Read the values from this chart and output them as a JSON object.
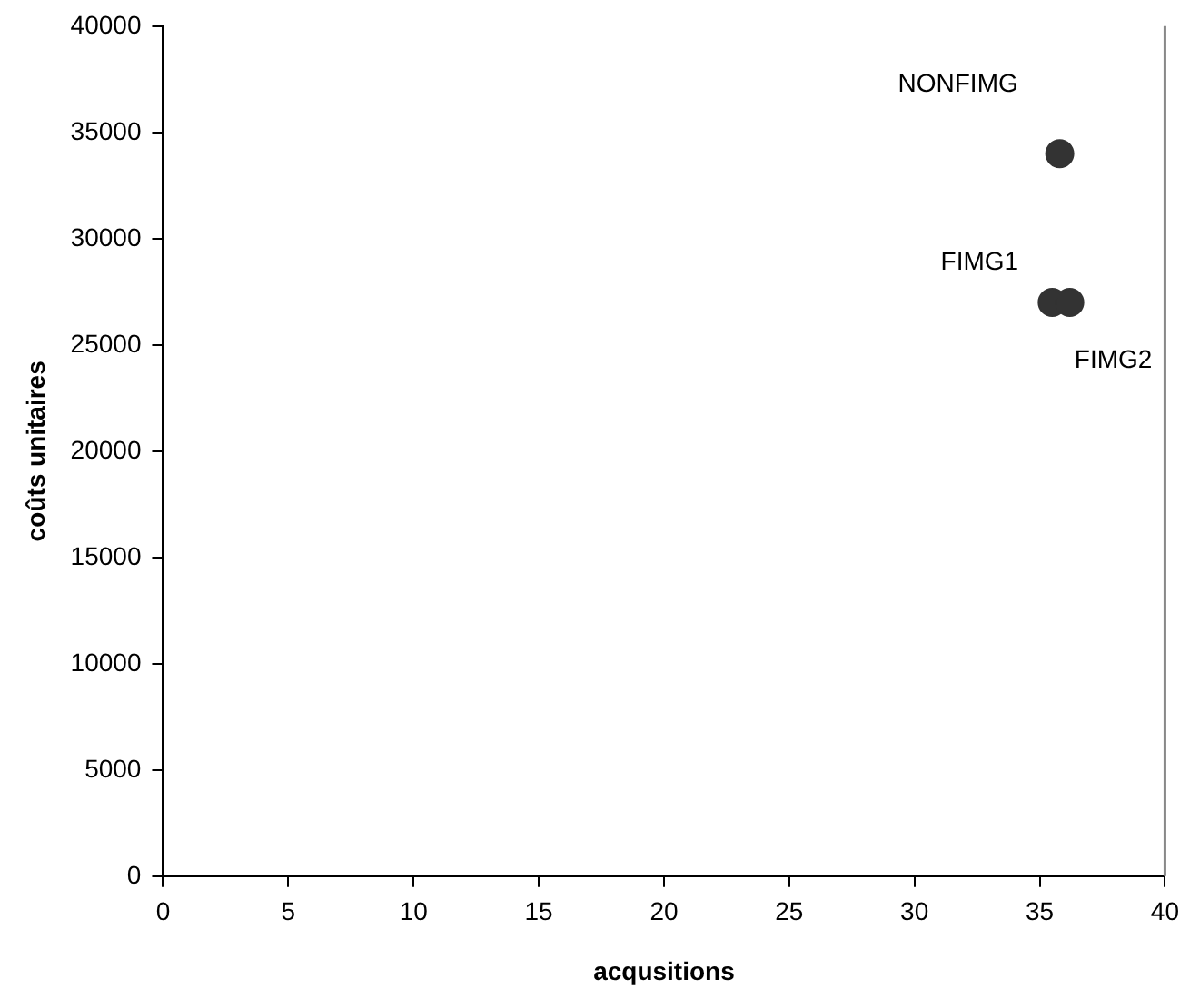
{
  "chart_data": {
    "type": "scatter",
    "xlabel": "acqusitions",
    "ylabel": "coûts unitaires",
    "series": [
      {
        "color": "#333333",
        "x": [
          35.8,
          35.5,
          36.2
        ],
        "values": [
          34000,
          27000,
          27000
        ]
      }
    ],
    "annotations": [
      {
        "text": "NONFIMG",
        "x": 35.8,
        "y": 34000
      },
      {
        "text": "FIMG1",
        "x": 35.5,
        "y": 27000
      },
      {
        "text": "FIMG2",
        "x": 36.2,
        "y": 27000
      }
    ],
    "xlim": [
      0,
      40
    ],
    "xticks": [
      0,
      5,
      10,
      15,
      20,
      25,
      30,
      35,
      40
    ],
    "ylim": [
      0,
      40000
    ],
    "yticks": [
      0,
      5000,
      10000,
      15000,
      20000,
      25000,
      30000,
      35000,
      40000
    ],
    "marker": "circle",
    "grid": false,
    "legend": false
  }
}
